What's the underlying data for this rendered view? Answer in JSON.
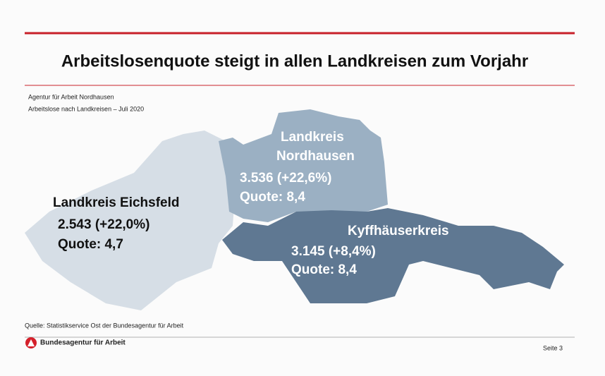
{
  "header": {
    "title": "Arbeitslosenquote steigt in allen Landkreisen zum Vorjahr",
    "subtitle_lines": [
      "Agentur für Arbeit Nordhausen",
      "Arbeitslose nach Landkreisen – Juli 2020"
    ]
  },
  "regions": [
    {
      "name_lines": [
        "Landkreis Eichsfeld"
      ],
      "value": "2.543 (+22,0%)",
      "quote": "Quote: 4,7"
    },
    {
      "name_lines": [
        "Landkreis",
        "Nordhausen"
      ],
      "value": "3.536 (+22,6%)",
      "quote": "Quote: 8,4"
    },
    {
      "name_lines": [
        "Kyffhäuserkreis"
      ],
      "value": "3.145 (+8,4%)",
      "quote": "Quote: 8,4"
    }
  ],
  "source": "Quelle: Statistikservice Ost der Bundesagentur für Arbeit",
  "footer": {
    "logo_text": "Bundesagentur für Arbeit",
    "page": "Seite 3"
  }
}
